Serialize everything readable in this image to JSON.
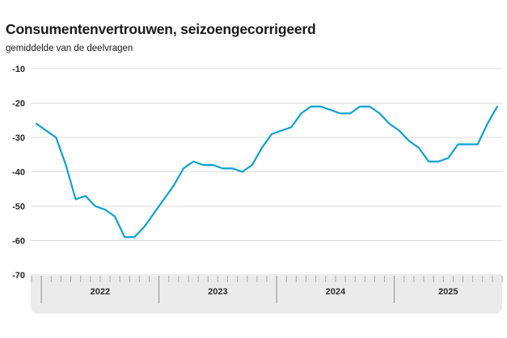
{
  "header": {
    "title": "Consumentenvertrouwen, seizoengecorrigeerd",
    "subtitle": "gemiddelde van de deelvragen"
  },
  "colors": {
    "line": "#0aa1d5",
    "grid": "#dcdcdc",
    "axis_band": "#ebebeb",
    "tick_minor": "#ababab",
    "tick_major": "#8c8c8c",
    "text": "#262626"
  },
  "chart_data": {
    "type": "line",
    "title": "Consumentenvertrouwen, seizoengecorrigeerd",
    "subtitle": "gemiddelde van de deelvragen",
    "x_frequency": "monthly",
    "x": [
      "2021-12",
      "2022-01",
      "2022-02",
      "2022-03",
      "2022-04",
      "2022-05",
      "2022-06",
      "2022-07",
      "2022-08",
      "2022-09",
      "2022-10",
      "2022-11",
      "2022-12",
      "2023-01",
      "2023-02",
      "2023-03",
      "2023-04",
      "2023-05",
      "2023-06",
      "2023-07",
      "2023-08",
      "2023-09",
      "2023-10",
      "2023-11",
      "2023-12",
      "2024-01",
      "2024-02",
      "2024-03",
      "2024-04",
      "2024-05",
      "2024-06",
      "2024-07",
      "2024-08",
      "2024-09",
      "2024-10",
      "2024-11",
      "2024-12",
      "2025-01",
      "2025-02",
      "2025-03",
      "2025-04",
      "2025-05",
      "2025-06",
      "2025-07",
      "2025-08",
      "2025-09",
      "2025-10",
      "2025-11"
    ],
    "values": [
      -26,
      -28,
      -30,
      -38,
      -48,
      -47,
      -50,
      -51,
      -53,
      -59,
      -59,
      -56,
      -52,
      -48,
      -44,
      -39,
      -37,
      -38,
      -38,
      -39,
      -39,
      -40,
      -38,
      -33,
      -29,
      -28,
      -27,
      -23,
      -21,
      -21,
      -22,
      -23,
      -23,
      -21,
      -21,
      -23,
      -26,
      -28,
      -31,
      -33,
      -37,
      -37,
      -36,
      -32,
      -32,
      -32,
      -26,
      -21
    ],
    "y_ticks": [
      -10,
      -20,
      -30,
      -40,
      -50,
      -60,
      -70
    ],
    "ylim": [
      -70,
      -10
    ],
    "x_year_labels": [
      "2022",
      "2023",
      "2024",
      "2025"
    ],
    "grid": "horizontal-only",
    "legend": "none"
  }
}
